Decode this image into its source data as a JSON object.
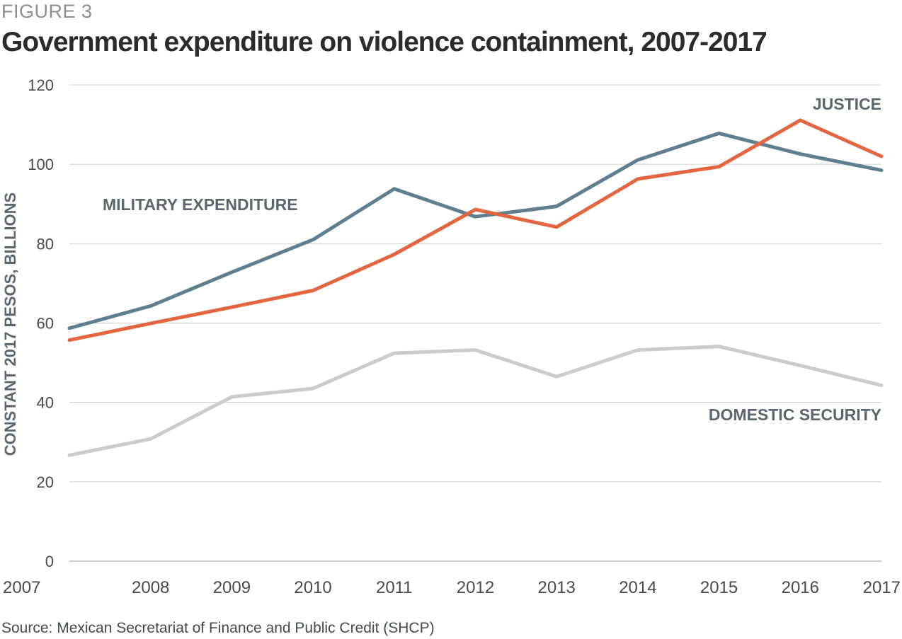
{
  "figure_label": "FIGURE 3",
  "source": "Source: Mexican Secretariat of Finance and Public Credit (SHCP)",
  "chart_data": {
    "type": "line",
    "title": "Government expenditure on violence containment, 2007-2017",
    "ylabel": "CONSTANT 2017 PESOS, BILLIONS",
    "xlabel": "",
    "ylim": [
      0,
      120
    ],
    "yticks": [
      0,
      20,
      40,
      60,
      80,
      100,
      120
    ],
    "x": [
      "2007",
      "2008",
      "2009",
      "2010",
      "2011",
      "2012",
      "2013",
      "2014",
      "2015",
      "2016",
      "2017"
    ],
    "grid": "horizontal",
    "legend": "direct labels",
    "series": [
      {
        "name": "MILITARY EXPENDITURE",
        "color": "#5f7f8f",
        "values": [
          58.7,
          64.3,
          72.8,
          81.0,
          93.8,
          86.8,
          89.4,
          101.1,
          107.8,
          102.6,
          98.5
        ]
      },
      {
        "name": "JUSTICE",
        "color": "#e36640",
        "values": [
          55.7,
          59.9,
          64.0,
          68.2,
          77.3,
          88.6,
          84.2,
          96.3,
          99.4,
          111.1,
          102.0
        ]
      },
      {
        "name": "DOMESTIC SECURITY",
        "color": "#cccccc",
        "values": [
          26.7,
          30.8,
          41.4,
          43.5,
          52.4,
          53.2,
          46.5,
          53.2,
          54.1,
          49.3,
          44.3
        ]
      }
    ]
  }
}
